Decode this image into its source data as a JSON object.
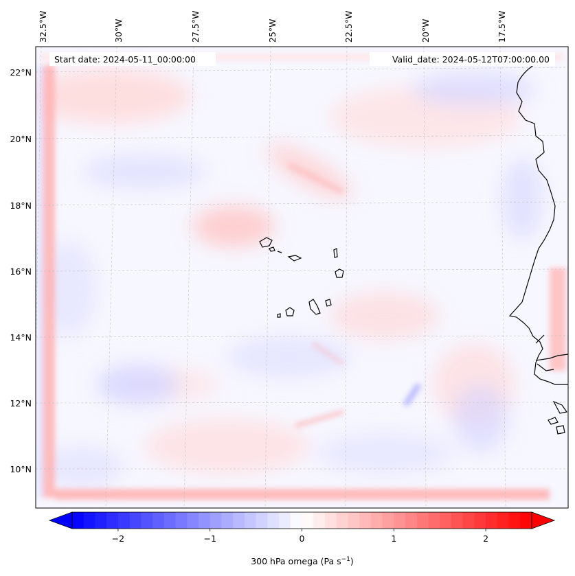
{
  "map": {
    "start_date": "Start date: 2024-05-11_00:00:00",
    "valid_date": "Valid_date: 2024-05-12T07:00:00.00",
    "longitude_labels": [
      "32.5°W",
      "30°W",
      "27.5°W",
      "25°W",
      "22.5°W",
      "20°W",
      "17.5°W"
    ],
    "latitude_labels": [
      "22°N",
      "20°N",
      "18°N",
      "16°N",
      "14°N",
      "12°N",
      "10°N"
    ],
    "extent": {
      "lon_min": -33.0,
      "lon_max": -15.5,
      "lat_min": 8.9,
      "lat_max": 22.7
    },
    "gridlines": true,
    "coastline_color": "#000000"
  },
  "colorbar": {
    "label_main": "300 hPa omega (Pa s",
    "label_exp": "−1",
    "label_end": ")",
    "ticks": [
      {
        "value": -2,
        "label": "−2"
      },
      {
        "value": -1,
        "label": "−1"
      },
      {
        "value": 0,
        "label": "0"
      },
      {
        "value": 1,
        "label": "1"
      },
      {
        "value": 2,
        "label": "2"
      }
    ],
    "vmin": -2.5,
    "vmax": 2.5,
    "colormap": "bwr",
    "extend": "both",
    "low_color": "#0000ff",
    "mid_color": "#ffffff",
    "high_color": "#ff0000"
  }
}
